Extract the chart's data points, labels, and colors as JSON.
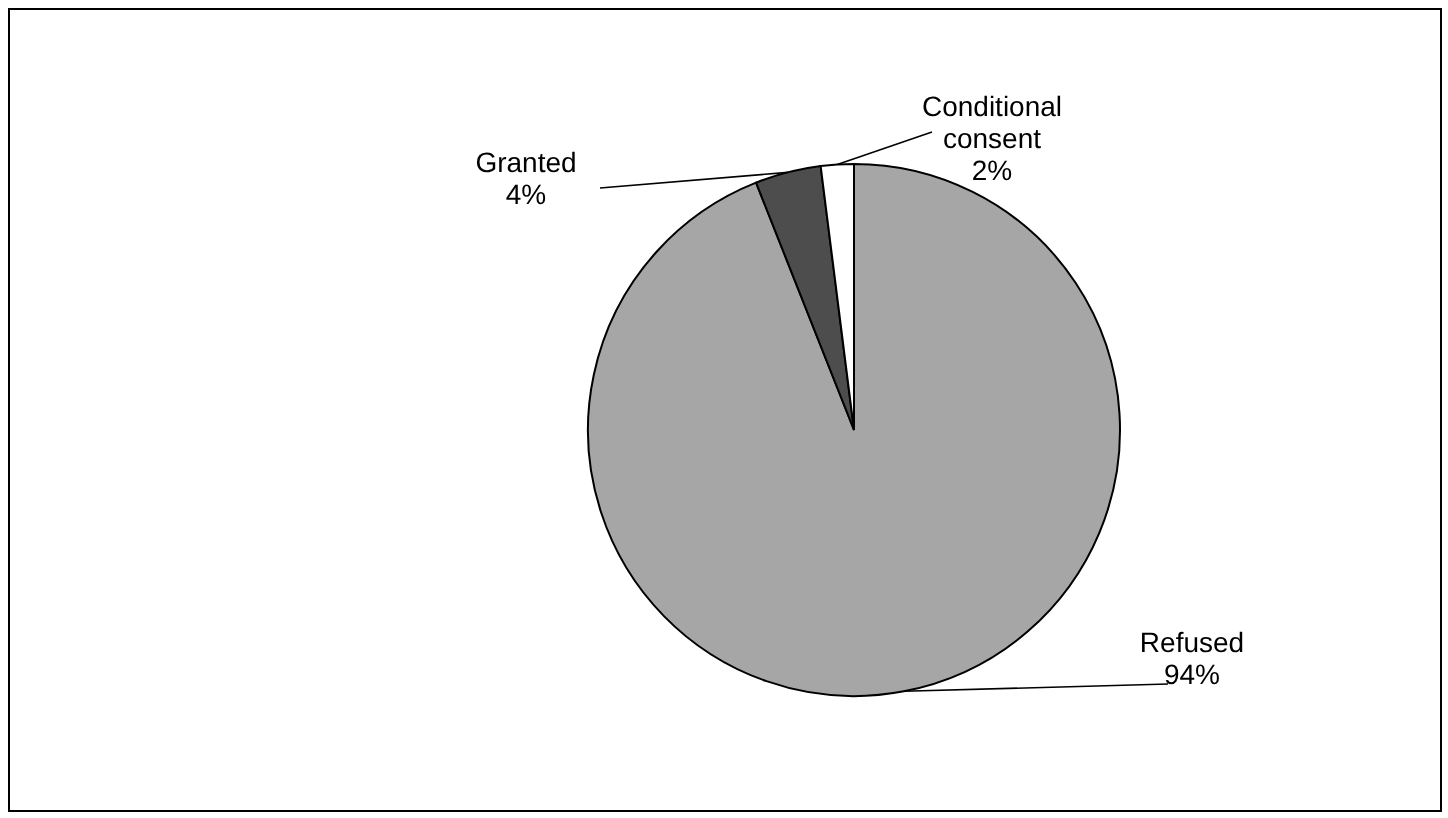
{
  "chart_data": {
    "type": "pie",
    "categories": [
      "Refused",
      "Granted",
      "Conditional\nconsent"
    ],
    "values": [
      94,
      4,
      2
    ],
    "value_labels": [
      "94%",
      "4%",
      "2%"
    ],
    "colors": [
      "#a6a6a6",
      "#4d4d4d",
      "#ffffff"
    ]
  }
}
